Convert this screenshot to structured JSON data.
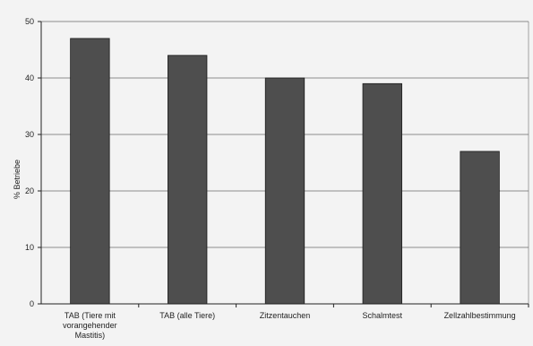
{
  "chart_data": {
    "type": "bar",
    "title": "",
    "xlabel": "",
    "ylabel": "% Betriebe",
    "ylim": [
      0,
      50
    ],
    "yticks": [
      0,
      10,
      20,
      30,
      40,
      50
    ],
    "grid": true,
    "categories": [
      "TAB (Tiere mit vorangehender Mastitis)",
      "TAB  (alle Tiere)",
      "Zitzentauchen",
      "Schalmtest",
      "Zellzahlbestimmung"
    ],
    "category_label_lines": [
      [
        "TAB (Tiere mit",
        "vorangehender",
        "Mastitis)"
      ],
      [
        "TAB  (alle Tiere)"
      ],
      [
        "Zitzentauchen"
      ],
      [
        "Schalmtest"
      ],
      [
        "Zellzahlbestimmung"
      ]
    ],
    "values": [
      47,
      44,
      40,
      39,
      27
    ],
    "colors": {
      "bar": "#4e4e4e",
      "grid": "#6a6a6a",
      "axis": "#222222",
      "background": "#f3f3f3"
    }
  }
}
